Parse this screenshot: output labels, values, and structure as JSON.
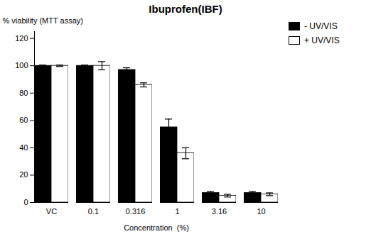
{
  "chart_data": {
    "type": "bar",
    "title": "Ibuprofen(IBF)",
    "xlabel": "Concentration  (%)",
    "ylabel": "% viability (MTT assay)",
    "categories": [
      "VC",
      "0.1",
      "0.316",
      "1",
      "3.16",
      "10"
    ],
    "series": [
      {
        "name": "- UV/VIS",
        "color": "#000000",
        "values": [
          100,
          100,
          97,
          55,
          7,
          7
        ],
        "errors": [
          0.5,
          0.5,
          1.5,
          6,
          1,
          1
        ]
      },
      {
        "name": "+ UV/VIS",
        "color": "#ffffff",
        "values": [
          100,
          100,
          86,
          36,
          5,
          6
        ],
        "errors": [
          0.5,
          3,
          1.5,
          4,
          1,
          1
        ]
      }
    ],
    "ylim": [
      0,
      125
    ],
    "yticks": [
      0,
      20,
      40,
      60,
      80,
      100,
      120
    ],
    "grid": false,
    "legend": "upper right"
  }
}
